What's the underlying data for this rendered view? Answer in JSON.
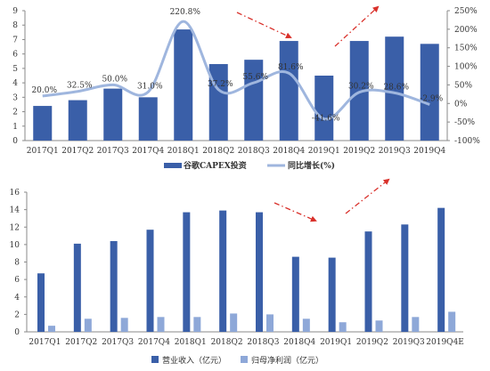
{
  "colors": {
    "bar": "#3a5fa8",
    "bar_light": "#8ea8d8",
    "line": "#9fb6de",
    "arrow": "#d9302a",
    "axis": "#8a8a8a"
  },
  "chart_data": [
    {
      "type": "bar",
      "categories": [
        "2017Q1",
        "2017Q2",
        "2017Q3",
        "2017Q4",
        "2018Q1",
        "2018Q2",
        "2018Q3",
        "2018Q4",
        "2019Q1",
        "2019Q2",
        "2019Q3",
        "2019Q4"
      ],
      "series": [
        {
          "name": "谷歌CAPEX投资",
          "type": "bar",
          "axis": "left",
          "values": [
            2.4,
            2.8,
            3.6,
            3.0,
            7.7,
            5.3,
            5.6,
            6.9,
            4.5,
            6.9,
            7.2,
            6.7
          ]
        },
        {
          "name": "同比增长(%)",
          "type": "line",
          "axis": "right",
          "values": [
            20.0,
            32.5,
            50.0,
            31.0,
            220.8,
            37.2,
            55.6,
            81.6,
            -41.6,
            30.2,
            28.6,
            -2.9
          ],
          "labels": [
            "20.0%",
            "32.5%",
            "50.0%",
            "31.0%",
            "220.8%",
            "37.2%",
            "55.6%",
            "81.6%",
            "-41.6%",
            "30.2%",
            "28.6%",
            "-2.9%"
          ]
        }
      ],
      "ylim": [
        0,
        9
      ],
      "y_ticks": [
        "0",
        "1",
        "2",
        "3",
        "4",
        "5",
        "6",
        "7",
        "8",
        "9"
      ],
      "y2lim": [
        -100,
        250
      ],
      "y2_ticks": [
        "-100%",
        "-50%",
        "0%",
        "50%",
        "100%",
        "150%",
        "200%",
        "250%"
      ],
      "legend": [
        "谷歌CAPEX投资",
        "同比增长(%)"
      ],
      "legend_position": "bottom",
      "grid": false
    },
    {
      "type": "bar",
      "categories": [
        "2017Q1",
        "2017Q2",
        "2017Q3",
        "2017Q4",
        "2018Q1",
        "2018Q2",
        "2018Q3",
        "2018Q4",
        "2019Q1",
        "2019Q2",
        "2019Q3",
        "2019Q4E"
      ],
      "series": [
        {
          "name": "营业收入（亿元）",
          "values": [
            6.7,
            10.1,
            10.4,
            11.7,
            13.7,
            13.9,
            13.7,
            8.6,
            8.5,
            11.5,
            12.3,
            14.2
          ]
        },
        {
          "name": "归母净利润（亿元）",
          "values": [
            0.7,
            1.5,
            1.6,
            1.7,
            1.7,
            2.1,
            2.0,
            1.5,
            1.1,
            1.3,
            1.7,
            2.3
          ]
        }
      ],
      "ylim": [
        0,
        16
      ],
      "y_ticks": [
        "0",
        "2",
        "4",
        "6",
        "8",
        "10",
        "12",
        "14",
        "16"
      ],
      "legend": [
        "营业收入（亿元）",
        "归母净利润（亿元）"
      ],
      "legend_position": "bottom",
      "grid": false
    }
  ]
}
